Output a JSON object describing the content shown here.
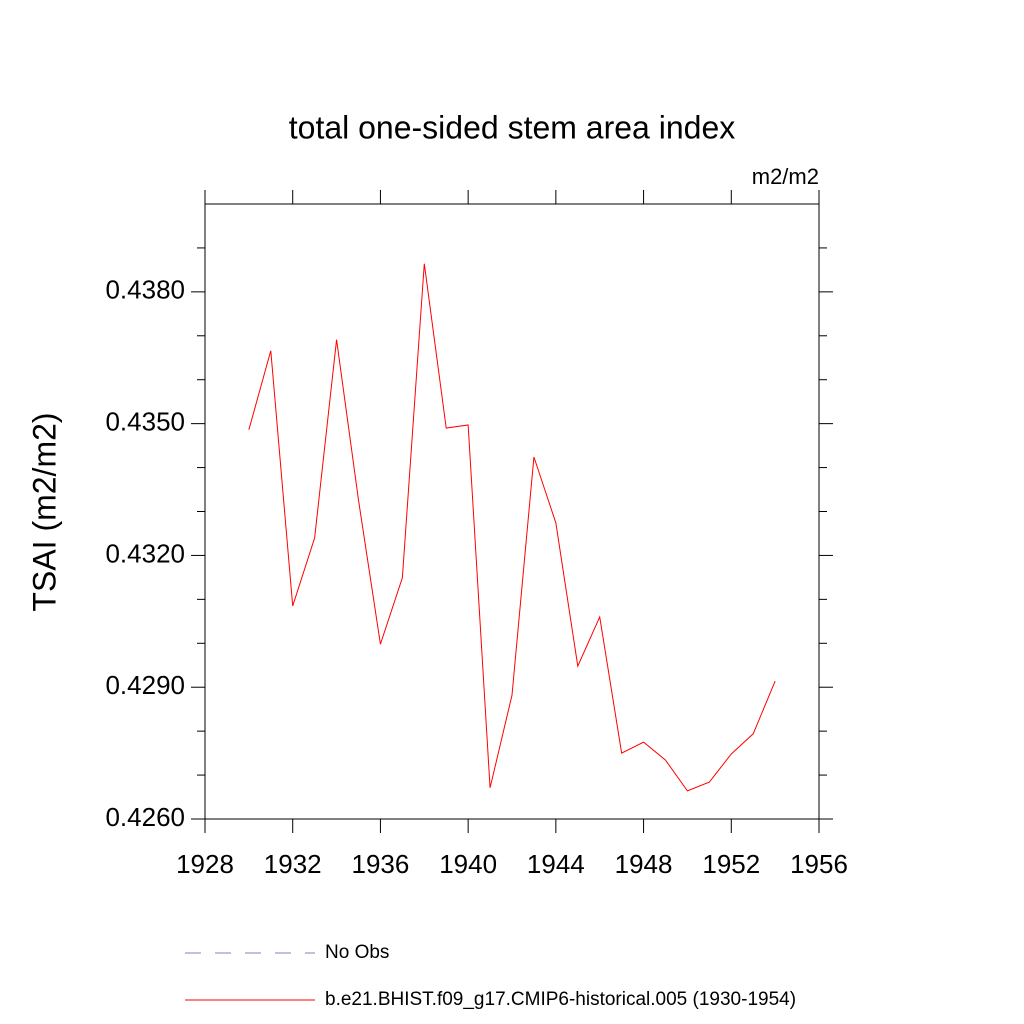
{
  "chart_data": {
    "type": "line",
    "title": "total one-sided stem area index",
    "units": "m2/m2",
    "y_label": "TSAI  (m2/m2)",
    "x": [
      1930,
      1931,
      1932,
      1933,
      1934,
      1935,
      1936,
      1937,
      1938,
      1939,
      1940,
      1941,
      1942,
      1943,
      1944,
      1945,
      1946,
      1947,
      1948,
      1949,
      1950,
      1951,
      1952,
      1953,
      1954
    ],
    "series": [
      {
        "name": "b.e21.BHIST.f09_g17.CMIP6-historical.005 (1930-1954)",
        "color": "#ff0000",
        "values": [
          0.43486,
          0.43666,
          0.43085,
          0.4324,
          0.43691,
          0.43326,
          0.42998,
          0.43149,
          0.43864,
          0.4349,
          0.43497,
          0.42671,
          0.42882,
          0.43424,
          0.43274,
          0.42948,
          0.4306,
          0.4275,
          0.42775,
          0.42734,
          0.42664,
          0.42684,
          0.42748,
          0.42794,
          0.42914
        ]
      }
    ],
    "reference": {
      "name": "No Obs",
      "color": "#8080c0",
      "dashed": true
    },
    "xlim": [
      1928,
      1956
    ],
    "xticks": [
      1928,
      1932,
      1936,
      1940,
      1944,
      1948,
      1952,
      1956
    ],
    "ylim": [
      0.426,
      0.44
    ],
    "yticks": [
      {
        "value": 0.426,
        "label": "0.4260"
      },
      {
        "value": 0.429,
        "label": "0.4290"
      },
      {
        "value": 0.432,
        "label": "0.4320"
      },
      {
        "value": 0.435,
        "label": "0.4350"
      },
      {
        "value": 0.438,
        "label": "0.4380"
      }
    ],
    "yminor_ticks": [
      0.427,
      0.428,
      0.43,
      0.431,
      0.433,
      0.434,
      0.436,
      0.437,
      0.439
    ],
    "grid": false
  }
}
